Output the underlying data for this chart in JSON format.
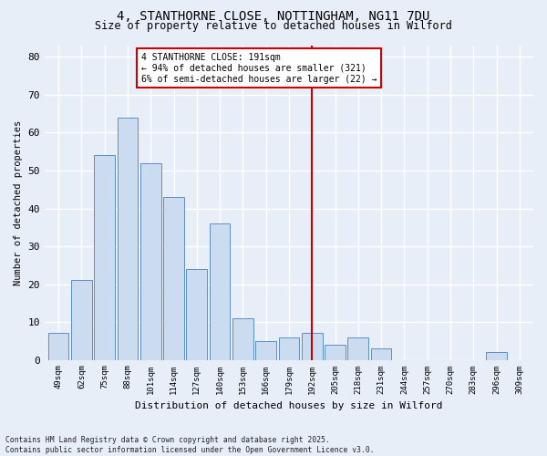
{
  "title_line1": "4, STANTHORNE CLOSE, NOTTINGHAM, NG11 7DU",
  "title_line2": "Size of property relative to detached houses in Wilford",
  "xlabel": "Distribution of detached houses by size in Wilford",
  "ylabel": "Number of detached properties",
  "categories": [
    "49sqm",
    "62sqm",
    "75sqm",
    "88sqm",
    "101sqm",
    "114sqm",
    "127sqm",
    "140sqm",
    "153sqm",
    "166sqm",
    "179sqm",
    "192sqm",
    "205sqm",
    "218sqm",
    "231sqm",
    "244sqm",
    "257sqm",
    "270sqm",
    "283sqm",
    "296sqm",
    "309sqm"
  ],
  "values": [
    7,
    21,
    54,
    64,
    52,
    43,
    24,
    36,
    11,
    5,
    6,
    7,
    4,
    6,
    3,
    0,
    0,
    0,
    0,
    2,
    0
  ],
  "bar_color": "#ccdcf0",
  "bar_edge_color": "#5b8fc9",
  "background_color": "#e8eef8",
  "grid_color": "#ffffff",
  "vline_x_index": 11,
  "vline_color": "#cc0000",
  "annotation_text": "4 STANTHORNE CLOSE: 191sqm\n← 94% of detached houses are smaller (321)\n6% of semi-detached houses are larger (22) →",
  "annotation_box_color": "#ffffff",
  "annotation_box_edge": "#cc0000",
  "ylim": [
    0,
    83
  ],
  "yticks": [
    0,
    10,
    20,
    30,
    40,
    50,
    60,
    70,
    80
  ],
  "footnote": "Contains HM Land Registry data © Crown copyright and database right 2025.\nContains public sector information licensed under the Open Government Licence v3.0.",
  "figsize": [
    6.0,
    5.0
  ],
  "dpi": 100
}
